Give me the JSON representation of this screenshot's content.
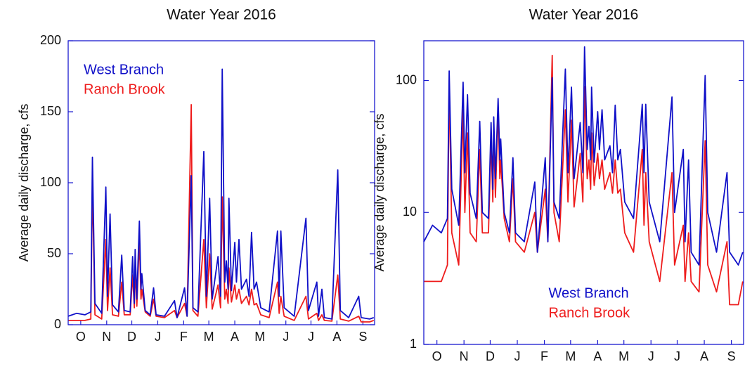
{
  "chart_data": [
    {
      "type": "line",
      "title": "Water Year 2016",
      "y_label": "Average daily discharge, cfs",
      "yscale": "linear",
      "legend": "upper left",
      "axis_color": "#1a1ad0",
      "xlim": [
        0,
        366
      ],
      "xticks": [
        {
          "value": 15,
          "label": "O"
        },
        {
          "value": 46,
          "label": "N"
        },
        {
          "value": 76,
          "label": "D"
        },
        {
          "value": 107,
          "label": "J"
        },
        {
          "value": 138,
          "label": "F"
        },
        {
          "value": 168,
          "label": "M"
        },
        {
          "value": 199,
          "label": "A"
        },
        {
          "value": 229,
          "label": "M"
        },
        {
          "value": 260,
          "label": "J"
        },
        {
          "value": 290,
          "label": "J"
        },
        {
          "value": 321,
          "label": "A"
        },
        {
          "value": 352,
          "label": "S"
        }
      ],
      "ylim": [
        0,
        200
      ],
      "yticks": [
        0,
        50,
        100,
        150,
        200
      ],
      "x": [
        0,
        10,
        20,
        27,
        29,
        32,
        40,
        45,
        47,
        50,
        53,
        60,
        64,
        67,
        74,
        77,
        79,
        80,
        82,
        85,
        87,
        88,
        92,
        98,
        102,
        105,
        115,
        127,
        130,
        139,
        142,
        147,
        149,
        155,
        162,
        165,
        169,
        172,
        179,
        182,
        184,
        187,
        189,
        191,
        192,
        195,
        199,
        201,
        204,
        207,
        213,
        216,
        219,
        222,
        225,
        230,
        240,
        250,
        252,
        254,
        258,
        270,
        284,
        287,
        297,
        299,
        303,
        306,
        315,
        322,
        325,
        335,
        347,
        350,
        360,
        365
      ],
      "series": [
        {
          "name": "West Branch",
          "color": "#1010c8",
          "values": [
            6,
            8,
            7,
            9,
            118,
            15,
            8,
            97,
            20,
            78,
            14,
            9,
            49,
            10,
            9,
            48,
            15,
            53,
            18,
            73,
            25,
            36,
            10,
            7,
            26,
            7,
            6,
            17,
            5,
            26,
            6,
            105,
            12,
            9,
            122,
            20,
            89,
            18,
            48,
            20,
            180,
            30,
            45,
            25,
            89,
            24,
            58,
            30,
            60,
            25,
            32,
            20,
            65,
            25,
            30,
            12,
            9,
            66,
            20,
            66,
            12,
            6,
            75,
            10,
            30,
            6,
            25,
            5,
            4,
            109,
            10,
            5,
            20,
            5,
            4,
            5
          ]
        },
        {
          "name": "Ranch Brook",
          "color": "#ee1c1c",
          "values": [
            3,
            3,
            3,
            4,
            100,
            7,
            4,
            60,
            10,
            40,
            7,
            6,
            30,
            7,
            7,
            35,
            12,
            40,
            13,
            60,
            18,
            25,
            9,
            6,
            18,
            6,
            5,
            10,
            5,
            15,
            6,
            155,
            10,
            6,
            60,
            12,
            50,
            11,
            28,
            12,
            90,
            18,
            25,
            15,
            40,
            16,
            28,
            18,
            25,
            15,
            20,
            14,
            25,
            14,
            15,
            7,
            5,
            30,
            8,
            20,
            6,
            3,
            20,
            4,
            8,
            3,
            7,
            3,
            2.5,
            35,
            4,
            2.5,
            6,
            2,
            2,
            3
          ]
        }
      ]
    },
    {
      "type": "line",
      "title": "Water Year 2016",
      "y_label": "Average daily discharge, cfs",
      "yscale": "log",
      "legend": "lower center",
      "axis_color": "#1a1ad0",
      "xlim": [
        0,
        366
      ],
      "xticks": [
        {
          "value": 15,
          "label": "O"
        },
        {
          "value": 46,
          "label": "N"
        },
        {
          "value": 76,
          "label": "D"
        },
        {
          "value": 107,
          "label": "J"
        },
        {
          "value": 138,
          "label": "F"
        },
        {
          "value": 168,
          "label": "M"
        },
        {
          "value": 199,
          "label": "A"
        },
        {
          "value": 229,
          "label": "M"
        },
        {
          "value": 260,
          "label": "J"
        },
        {
          "value": 290,
          "label": "J"
        },
        {
          "value": 321,
          "label": "A"
        },
        {
          "value": 352,
          "label": "S"
        }
      ],
      "ylim": [
        1,
        200
      ],
      "yticks": [
        1,
        10,
        100
      ],
      "x": [
        0,
        10,
        20,
        27,
        29,
        32,
        40,
        45,
        47,
        50,
        53,
        60,
        64,
        67,
        74,
        77,
        79,
        80,
        82,
        85,
        87,
        88,
        92,
        98,
        102,
        105,
        115,
        127,
        130,
        139,
        142,
        147,
        149,
        155,
        162,
        165,
        169,
        172,
        179,
        182,
        184,
        187,
        189,
        191,
        192,
        195,
        199,
        201,
        204,
        207,
        213,
        216,
        219,
        222,
        225,
        230,
        240,
        250,
        252,
        254,
        258,
        270,
        284,
        287,
        297,
        299,
        303,
        306,
        315,
        322,
        325,
        335,
        347,
        350,
        360,
        365
      ],
      "series": [
        {
          "name": "West Branch",
          "color": "#1010c8",
          "values": [
            6,
            8,
            7,
            9,
            118,
            15,
            8,
            97,
            20,
            78,
            14,
            9,
            49,
            10,
            9,
            48,
            15,
            53,
            18,
            73,
            25,
            36,
            10,
            7,
            26,
            7,
            6,
            17,
            5,
            26,
            6,
            105,
            12,
            9,
            122,
            20,
            89,
            18,
            48,
            20,
            180,
            30,
            45,
            25,
            89,
            24,
            58,
            30,
            60,
            25,
            32,
            20,
            65,
            25,
            30,
            12,
            9,
            66,
            20,
            66,
            12,
            6,
            75,
            10,
            30,
            6,
            25,
            5,
            4,
            109,
            10,
            5,
            20,
            5,
            4,
            5
          ]
        },
        {
          "name": "Ranch Brook",
          "color": "#ee1c1c",
          "values": [
            3,
            3,
            3,
            4,
            100,
            7,
            4,
            60,
            10,
            40,
            7,
            6,
            30,
            7,
            7,
            35,
            12,
            40,
            13,
            60,
            18,
            25,
            9,
            6,
            18,
            6,
            5,
            10,
            5,
            15,
            6,
            155,
            10,
            6,
            60,
            12,
            50,
            11,
            28,
            12,
            90,
            18,
            25,
            15,
            40,
            16,
            28,
            18,
            25,
            15,
            20,
            14,
            25,
            14,
            15,
            7,
            5,
            30,
            8,
            20,
            6,
            3,
            20,
            4,
            8,
            3,
            7,
            3,
            2.5,
            35,
            4,
            2.5,
            6,
            2,
            2,
            3
          ]
        }
      ]
    }
  ]
}
